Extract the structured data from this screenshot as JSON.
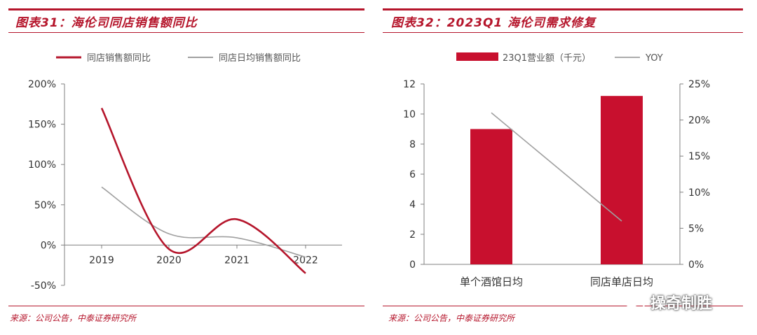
{
  "left": {
    "title": "图表31：海伦司同店销售额同比",
    "source": "来源：公司公告，中泰证券研究所"
  },
  "right": {
    "title": "图表32：2023Q1 海伦司需求修复",
    "source": "来源：公司公告，中泰证券研究所"
  },
  "watermark": {
    "text": "操奇制胜",
    "icon": "wechat-icon"
  },
  "colors": {
    "accent": "#b5152b",
    "series_gray": "#a0a0a0",
    "bar": "#c8102e"
  },
  "chart_data": [
    {
      "type": "line",
      "title": "图表31：海伦司同店销售额同比",
      "categories": [
        "2019",
        "2020",
        "2021",
        "2022"
      ],
      "series": [
        {
          "name": "同店销售额同比",
          "values": [
            1.7,
            -0.05,
            0.32,
            -0.35
          ]
        },
        {
          "name": "同店日均销售额同比",
          "values": [
            0.72,
            0.14,
            0.09,
            -0.15
          ]
        }
      ],
      "ylim": [
        -0.5,
        2.0
      ],
      "yticks": [
        -0.5,
        0,
        0.5,
        1.0,
        1.5,
        2.0
      ],
      "ytick_labels": [
        "-50%",
        "0%",
        "50%",
        "100%",
        "150%",
        "200%"
      ],
      "legend": "top",
      "grid": false
    },
    {
      "type": "bar",
      "title": "图表32：2023Q1 海伦司需求修复",
      "categories": [
        "单个酒馆日均",
        "同店单店日均"
      ],
      "series": [
        {
          "name": "23Q1营业额（千元）",
          "type": "bar",
          "axis": "left",
          "values": [
            9.0,
            11.2
          ]
        },
        {
          "name": "YOY",
          "type": "line",
          "axis": "right",
          "values": [
            0.21,
            0.06
          ]
        }
      ],
      "ylim": [
        0,
        12
      ],
      "yticks": [
        0,
        2,
        4,
        6,
        8,
        10,
        12
      ],
      "y2lim": [
        0,
        0.25
      ],
      "y2ticks": [
        0,
        0.05,
        0.1,
        0.15,
        0.2,
        0.25
      ],
      "y2tick_labels": [
        "0%",
        "5%",
        "10%",
        "15%",
        "20%",
        "25%"
      ],
      "legend": "top",
      "grid": false
    }
  ]
}
